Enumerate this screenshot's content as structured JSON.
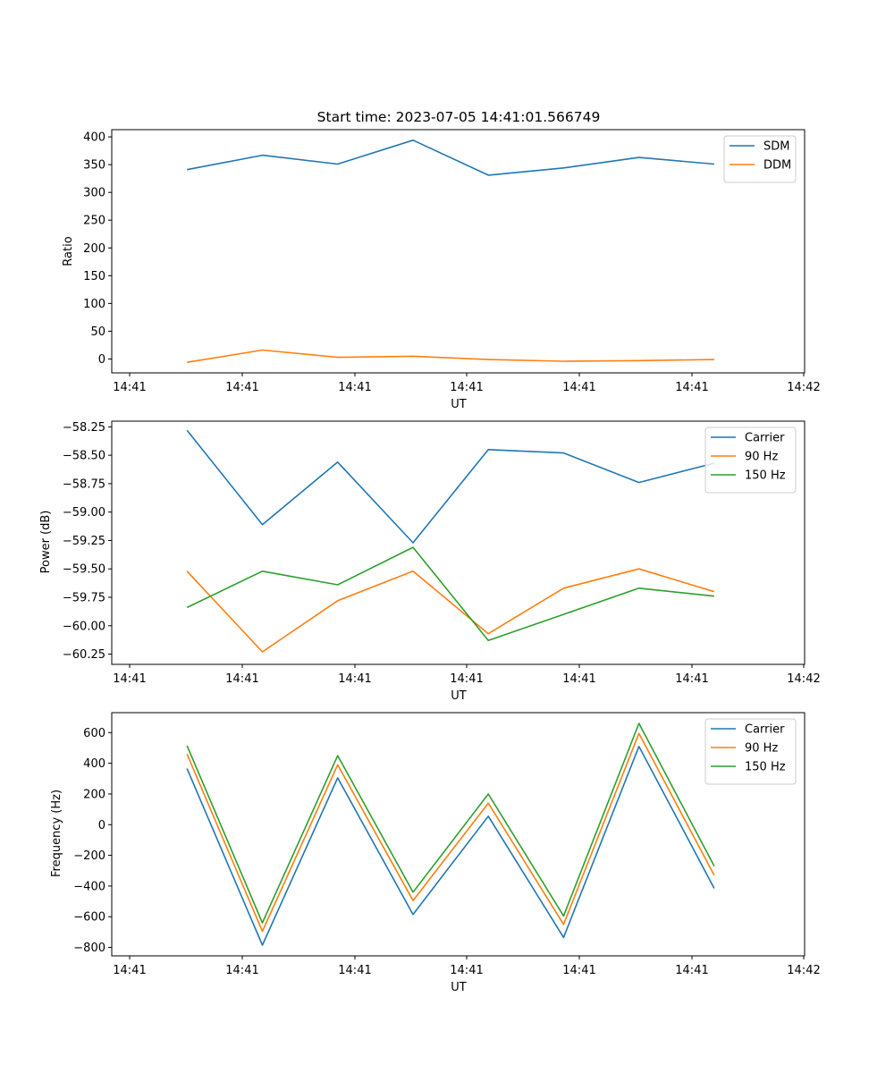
{
  "chart_data": [
    {
      "type": "line",
      "title": "Start time: 2023-07-05 14:41:01.566749",
      "xlabel": "UT",
      "ylabel": "Ratio",
      "x_ticks": [
        "14:41",
        "14:41",
        "14:41",
        "14:41",
        "14:41",
        "14:41",
        "14:41"
      ],
      "x_tick_last": "14:42",
      "x_points": [
        1,
        2,
        3,
        4,
        5,
        6,
        7,
        8
      ],
      "xlim": [
        0,
        9.2
      ],
      "ylim": [
        -25,
        413
      ],
      "y_ticks": [
        0,
        50,
        100,
        150,
        200,
        250,
        300,
        350,
        400
      ],
      "y_tick_labels": [
        "0",
        "50",
        "100",
        "150",
        "200",
        "250",
        "300",
        "350",
        "400"
      ],
      "legend": "top-right",
      "series": [
        {
          "name": "SDM",
          "color": "#1f77b4",
          "values": [
            341,
            367,
            351,
            394,
            331,
            344,
            363,
            351
          ]
        },
        {
          "name": "DDM",
          "color": "#ff7f0e",
          "values": [
            -6,
            16,
            3,
            5,
            -1,
            -4,
            -3,
            -1
          ]
        }
      ]
    },
    {
      "type": "line",
      "title": "",
      "xlabel": "UT",
      "ylabel": "Power (dB)",
      "x_ticks": [
        "14:41",
        "14:41",
        "14:41",
        "14:41",
        "14:41",
        "14:41",
        "14:41"
      ],
      "x_tick_last": "14:42",
      "x_points": [
        1,
        2,
        3,
        4,
        5,
        6,
        7,
        8
      ],
      "xlim": [
        0,
        9.2
      ],
      "ylim": [
        -60.34,
        -58.2
      ],
      "y_ticks": [
        -60.25,
        -60.0,
        -59.75,
        -59.5,
        -59.25,
        -59.0,
        -58.75,
        -58.5,
        -58.25
      ],
      "y_tick_labels": [
        "−60.25",
        "−60.00",
        "−59.75",
        "−59.50",
        "−59.25",
        "−59.00",
        "−58.75",
        "−58.50",
        "−58.25"
      ],
      "legend": "top-right",
      "series": [
        {
          "name": "Carrier",
          "color": "#1f77b4",
          "values": [
            -58.28,
            -59.11,
            -58.56,
            -59.27,
            -58.45,
            -58.48,
            -58.74,
            -58.57
          ]
        },
        {
          "name": "90 Hz",
          "color": "#ff7f0e",
          "values": [
            -59.52,
            -60.23,
            -59.78,
            -59.52,
            -60.07,
            -59.67,
            -59.5,
            -59.7
          ]
        },
        {
          "name": "150 Hz",
          "color": "#2ca02c",
          "values": [
            -59.84,
            -59.52,
            -59.64,
            -59.31,
            -60.13,
            -59.9,
            -59.67,
            -59.74
          ]
        }
      ]
    },
    {
      "type": "line",
      "title": "",
      "xlabel": "UT",
      "ylabel": "Frequency (Hz)",
      "x_ticks": [
        "14:41",
        "14:41",
        "14:41",
        "14:41",
        "14:41",
        "14:41",
        "14:41"
      ],
      "x_tick_last": "14:42",
      "x_points": [
        1,
        2,
        3,
        4,
        5,
        6,
        7,
        8
      ],
      "xlim": [
        0,
        9.2
      ],
      "ylim": [
        -855,
        730
      ],
      "y_ticks": [
        -800,
        -600,
        -400,
        -200,
        0,
        200,
        400,
        600
      ],
      "y_tick_labels": [
        "−800",
        "−600",
        "−400",
        "−200",
        "0",
        "200",
        "400",
        "600"
      ],
      "legend": "top-right",
      "series": [
        {
          "name": "Carrier",
          "color": "#1f77b4",
          "values": [
            365,
            -785,
            305,
            -585,
            55,
            -735,
            510,
            -415
          ]
        },
        {
          "name": "90 Hz",
          "color": "#ff7f0e",
          "values": [
            460,
            -695,
            390,
            -495,
            140,
            -650,
            595,
            -330
          ]
        },
        {
          "name": "150 Hz",
          "color": "#2ca02c",
          "values": [
            515,
            -640,
            450,
            -440,
            200,
            -595,
            660,
            -270
          ]
        }
      ]
    }
  ]
}
